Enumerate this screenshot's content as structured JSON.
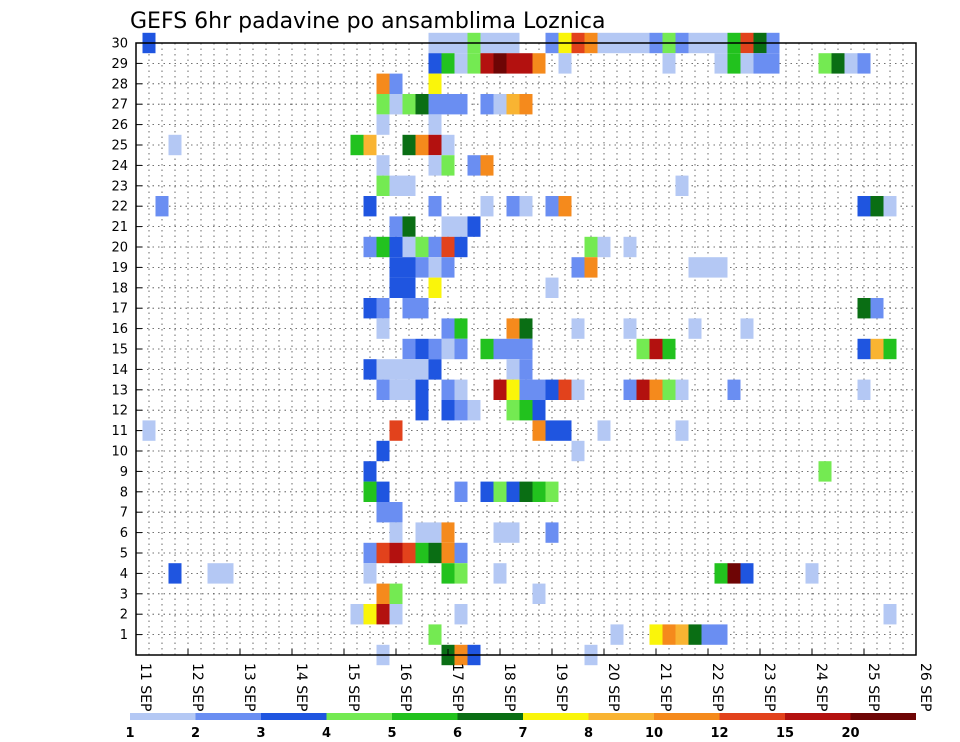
{
  "chart_data": {
    "type": "heatmap",
    "title": "GEFS 6hr padavine po ansamblima Loznica",
    "y_members": [
      "1",
      "2",
      "3",
      "4",
      "5",
      "6",
      "7",
      "8",
      "9",
      "10",
      "11",
      "12",
      "13",
      "14",
      "15",
      "16",
      "17",
      "18",
      "19",
      "20",
      "21",
      "22",
      "23",
      "24",
      "25",
      "26",
      "27",
      "28",
      "29",
      "30"
    ],
    "x_tick_labels": [
      "11 SEP",
      "12 SEP",
      "13 SEP",
      "14 SEP",
      "15 SEP",
      "16 SEP",
      "17 SEP",
      "18 SEP",
      "19 SEP",
      "20 SEP",
      "21 SEP",
      "22 SEP",
      "23 SEP",
      "24 SEP",
      "25 SEP",
      "26 SEP"
    ],
    "x_ticks": [
      0,
      1,
      2,
      3,
      4,
      5,
      6,
      7,
      8,
      9,
      10,
      11,
      12,
      13,
      14,
      15
    ],
    "xlim": [
      0,
      15
    ],
    "ylim": [
      0,
      30
    ],
    "time_step_days": 0.25,
    "grid": "dotted",
    "colorbar": {
      "labels": [
        "1",
        "2",
        "3",
        "4",
        "5",
        "6",
        "7",
        "8",
        "10",
        "12",
        "15",
        "20"
      ],
      "colors": [
        "#b4c8f4",
        "#6a8ef2",
        "#1f55e0",
        "#74ea52",
        "#22c21e",
        "#0a6e14",
        "#faf50a",
        "#f9b432",
        "#f58a1c",
        "#e2421c",
        "#b3110f",
        "#6e0505"
      ]
    },
    "cells": [
      [
        30,
        0.25,
        2
      ],
      [
        30,
        5.75,
        0
      ],
      [
        30,
        6,
        0
      ],
      [
        30,
        6.25,
        0
      ],
      [
        30,
        6.5,
        3
      ],
      [
        30,
        6.75,
        0
      ],
      [
        30,
        7,
        0
      ],
      [
        30,
        7.25,
        0
      ],
      [
        30,
        8,
        1
      ],
      [
        30,
        8.25,
        6
      ],
      [
        30,
        8.5,
        9
      ],
      [
        30,
        8.75,
        8
      ],
      [
        30,
        9,
        0
      ],
      [
        30,
        9.25,
        0
      ],
      [
        30,
        9.5,
        0
      ],
      [
        30,
        9.75,
        0
      ],
      [
        30,
        10,
        1
      ],
      [
        30,
        10.25,
        3
      ],
      [
        30,
        10.5,
        1
      ],
      [
        30,
        10.75,
        0
      ],
      [
        30,
        11,
        0
      ],
      [
        30,
        11.25,
        0
      ],
      [
        30,
        11.5,
        4
      ],
      [
        30,
        11.75,
        9
      ],
      [
        30,
        12,
        5
      ],
      [
        30,
        12.25,
        1
      ],
      [
        29,
        5.75,
        2
      ],
      [
        29,
        6,
        4
      ],
      [
        29,
        6.25,
        0
      ],
      [
        29,
        6.5,
        3
      ],
      [
        29,
        6.75,
        10
      ],
      [
        29,
        7,
        11
      ],
      [
        29,
        7.25,
        10
      ],
      [
        29,
        7.5,
        10
      ],
      [
        29,
        7.75,
        8
      ],
      [
        29,
        8.25,
        0
      ],
      [
        29,
        10.25,
        0
      ],
      [
        29,
        11.25,
        0
      ],
      [
        29,
        11.5,
        4
      ],
      [
        29,
        11.75,
        0
      ],
      [
        29,
        12,
        1
      ],
      [
        29,
        12.25,
        1
      ],
      [
        29,
        13.25,
        3
      ],
      [
        29,
        13.5,
        5
      ],
      [
        29,
        13.75,
        0
      ],
      [
        29,
        14,
        1
      ],
      [
        28,
        4.75,
        8
      ],
      [
        28,
        5,
        1
      ],
      [
        28,
        5.75,
        6
      ],
      [
        27,
        4.75,
        3
      ],
      [
        27,
        5,
        0
      ],
      [
        27,
        5.25,
        3
      ],
      [
        27,
        5.5,
        5
      ],
      [
        27,
        5.75,
        1
      ],
      [
        27,
        6,
        1
      ],
      [
        27,
        6.25,
        1
      ],
      [
        27,
        6.75,
        1
      ],
      [
        27,
        7,
        0
      ],
      [
        27,
        7.25,
        7
      ],
      [
        27,
        7.5,
        8
      ],
      [
        26,
        4.75,
        0
      ],
      [
        26,
        5.75,
        0
      ],
      [
        25,
        0.75,
        0
      ],
      [
        25,
        4.25,
        4
      ],
      [
        25,
        4.5,
        7
      ],
      [
        25,
        5.25,
        5
      ],
      [
        25,
        5.5,
        8
      ],
      [
        25,
        5.75,
        10
      ],
      [
        25,
        6,
        0
      ],
      [
        24,
        4.75,
        0
      ],
      [
        24,
        5.75,
        0
      ],
      [
        24,
        6,
        3
      ],
      [
        24,
        6.5,
        1
      ],
      [
        24,
        6.75,
        8
      ],
      [
        23,
        4.75,
        3
      ],
      [
        23,
        5,
        0
      ],
      [
        23,
        5.25,
        0
      ],
      [
        23,
        10.5,
        0
      ],
      [
        22,
        0.5,
        1
      ],
      [
        22,
        4.5,
        2
      ],
      [
        22,
        5.75,
        1
      ],
      [
        22,
        6.75,
        0
      ],
      [
        22,
        7.25,
        1
      ],
      [
        22,
        7.5,
        0
      ],
      [
        22,
        8,
        1
      ],
      [
        22,
        8.25,
        8
      ],
      [
        22,
        14,
        2
      ],
      [
        22,
        14.25,
        5
      ],
      [
        22,
        14.5,
        0
      ],
      [
        21,
        5,
        1
      ],
      [
        21,
        5.25,
        5
      ],
      [
        21,
        6,
        0
      ],
      [
        21,
        6.25,
        0
      ],
      [
        21,
        6.5,
        2
      ],
      [
        20,
        4.5,
        1
      ],
      [
        20,
        4.75,
        4
      ],
      [
        20,
        5,
        2
      ],
      [
        20,
        5.25,
        0
      ],
      [
        20,
        5.5,
        3
      ],
      [
        20,
        5.75,
        1
      ],
      [
        20,
        6,
        9
      ],
      [
        20,
        6.25,
        2
      ],
      [
        20,
        8.75,
        3
      ],
      [
        20,
        9,
        0
      ],
      [
        20,
        9.5,
        0
      ],
      [
        19,
        5,
        2
      ],
      [
        19,
        5.25,
        2
      ],
      [
        19,
        5.5,
        1
      ],
      [
        19,
        5.75,
        0
      ],
      [
        19,
        6,
        1
      ],
      [
        19,
        8.5,
        1
      ],
      [
        19,
        8.75,
        8
      ],
      [
        19,
        10.75,
        0
      ],
      [
        19,
        11,
        0
      ],
      [
        19,
        11.25,
        0
      ],
      [
        18,
        5,
        2
      ],
      [
        18,
        5.25,
        2
      ],
      [
        18,
        5.75,
        6
      ],
      [
        18,
        8,
        0
      ],
      [
        17,
        4.5,
        2
      ],
      [
        17,
        4.75,
        1
      ],
      [
        17,
        5.25,
        1
      ],
      [
        17,
        5.5,
        1
      ],
      [
        17,
        14,
        5
      ],
      [
        17,
        14.25,
        1
      ],
      [
        16,
        4.75,
        0
      ],
      [
        16,
        6,
        1
      ],
      [
        16,
        6.25,
        4
      ],
      [
        16,
        7.25,
        8
      ],
      [
        16,
        7.5,
        5
      ],
      [
        16,
        8.5,
        0
      ],
      [
        16,
        9.5,
        0
      ],
      [
        16,
        10.75,
        0
      ],
      [
        16,
        11.75,
        0
      ],
      [
        15,
        5.25,
        1
      ],
      [
        15,
        5.5,
        2
      ],
      [
        15,
        5.75,
        1
      ],
      [
        15,
        6,
        0
      ],
      [
        15,
        6.25,
        1
      ],
      [
        15,
        6.75,
        4
      ],
      [
        15,
        7,
        1
      ],
      [
        15,
        7.25,
        1
      ],
      [
        15,
        7.5,
        1
      ],
      [
        15,
        9.75,
        3
      ],
      [
        15,
        10,
        10
      ],
      [
        15,
        10.25,
        4
      ],
      [
        15,
        14,
        2
      ],
      [
        15,
        14.25,
        7
      ],
      [
        15,
        14.5,
        4
      ],
      [
        14,
        4.5,
        2
      ],
      [
        14,
        4.75,
        0
      ],
      [
        14,
        5,
        0
      ],
      [
        14,
        5.25,
        0
      ],
      [
        14,
        5.5,
        0
      ],
      [
        14,
        5.75,
        2
      ],
      [
        14,
        7.25,
        0
      ],
      [
        14,
        7.5,
        1
      ],
      [
        13,
        4.75,
        1
      ],
      [
        13,
        5,
        0
      ],
      [
        13,
        5.25,
        0
      ],
      [
        13,
        5.5,
        2
      ],
      [
        13,
        6,
        1
      ],
      [
        13,
        6.25,
        0
      ],
      [
        13,
        7,
        10
      ],
      [
        13,
        7.25,
        6
      ],
      [
        13,
        7.5,
        1
      ],
      [
        13,
        7.75,
        1
      ],
      [
        13,
        8,
        2
      ],
      [
        13,
        8.25,
        9
      ],
      [
        13,
        8.5,
        0
      ],
      [
        13,
        9.5,
        1
      ],
      [
        13,
        9.75,
        10
      ],
      [
        13,
        10,
        8
      ],
      [
        13,
        10.25,
        3
      ],
      [
        13,
        10.5,
        0
      ],
      [
        13,
        11.5,
        1
      ],
      [
        13,
        14,
        0
      ],
      [
        12,
        5.5,
        2
      ],
      [
        12,
        6,
        2
      ],
      [
        12,
        6.25,
        1
      ],
      [
        12,
        6.5,
        0
      ],
      [
        12,
        7.25,
        3
      ],
      [
        12,
        7.5,
        4
      ],
      [
        12,
        7.75,
        2
      ],
      [
        11,
        0.25,
        0
      ],
      [
        11,
        5,
        9
      ],
      [
        11,
        7.75,
        8
      ],
      [
        11,
        8,
        2
      ],
      [
        11,
        8.25,
        2
      ],
      [
        11,
        9,
        0
      ],
      [
        11,
        10.5,
        0
      ],
      [
        10,
        4.75,
        2
      ],
      [
        10,
        8.5,
        0
      ],
      [
        9,
        4.5,
        2
      ],
      [
        9,
        13.25,
        3
      ],
      [
        8,
        4.5,
        4
      ],
      [
        8,
        4.75,
        2
      ],
      [
        8,
        6.25,
        1
      ],
      [
        8,
        6.75,
        2
      ],
      [
        8,
        7,
        3
      ],
      [
        8,
        7.25,
        2
      ],
      [
        8,
        7.5,
        5
      ],
      [
        8,
        7.75,
        4
      ],
      [
        8,
        8,
        3
      ],
      [
        7,
        4.75,
        1
      ],
      [
        7,
        5,
        1
      ],
      [
        6,
        5,
        0
      ],
      [
        6,
        5.5,
        0
      ],
      [
        6,
        5.75,
        0
      ],
      [
        6,
        6,
        8
      ],
      [
        6,
        7,
        0
      ],
      [
        6,
        7.25,
        0
      ],
      [
        6,
        8,
        1
      ],
      [
        5,
        4.5,
        1
      ],
      [
        5,
        4.75,
        9
      ],
      [
        5,
        5,
        10
      ],
      [
        5,
        5.25,
        9
      ],
      [
        5,
        5.5,
        4
      ],
      [
        5,
        5.75,
        5
      ],
      [
        5,
        6,
        8
      ],
      [
        5,
        6.25,
        1
      ],
      [
        4,
        0.75,
        2
      ],
      [
        4,
        1.5,
        0
      ],
      [
        4,
        1.75,
        0
      ],
      [
        4,
        4.5,
        0
      ],
      [
        4,
        6,
        4
      ],
      [
        4,
        6.25,
        3
      ],
      [
        4,
        7,
        0
      ],
      [
        4,
        11.25,
        4
      ],
      [
        4,
        11.5,
        11
      ],
      [
        4,
        11.75,
        2
      ],
      [
        4,
        13,
        0
      ],
      [
        3,
        4.75,
        8
      ],
      [
        3,
        5,
        3
      ],
      [
        3,
        7.75,
        0
      ],
      [
        2,
        4.25,
        0
      ],
      [
        2,
        4.5,
        6
      ],
      [
        2,
        4.75,
        10
      ],
      [
        2,
        5,
        0
      ],
      [
        2,
        6.25,
        0
      ],
      [
        2,
        14.5,
        0
      ],
      [
        1,
        5.75,
        3
      ],
      [
        1,
        9.25,
        0
      ],
      [
        1,
        10,
        6
      ],
      [
        1,
        10.25,
        8
      ],
      [
        1,
        10.5,
        7
      ],
      [
        1,
        10.75,
        5
      ],
      [
        1,
        11,
        1
      ],
      [
        1,
        11.25,
        1
      ],
      [
        0,
        4.75,
        0
      ],
      [
        0,
        6,
        5
      ],
      [
        0,
        6.25,
        8
      ],
      [
        0,
        6.5,
        2
      ],
      [
        0,
        8.75,
        0
      ]
    ]
  }
}
